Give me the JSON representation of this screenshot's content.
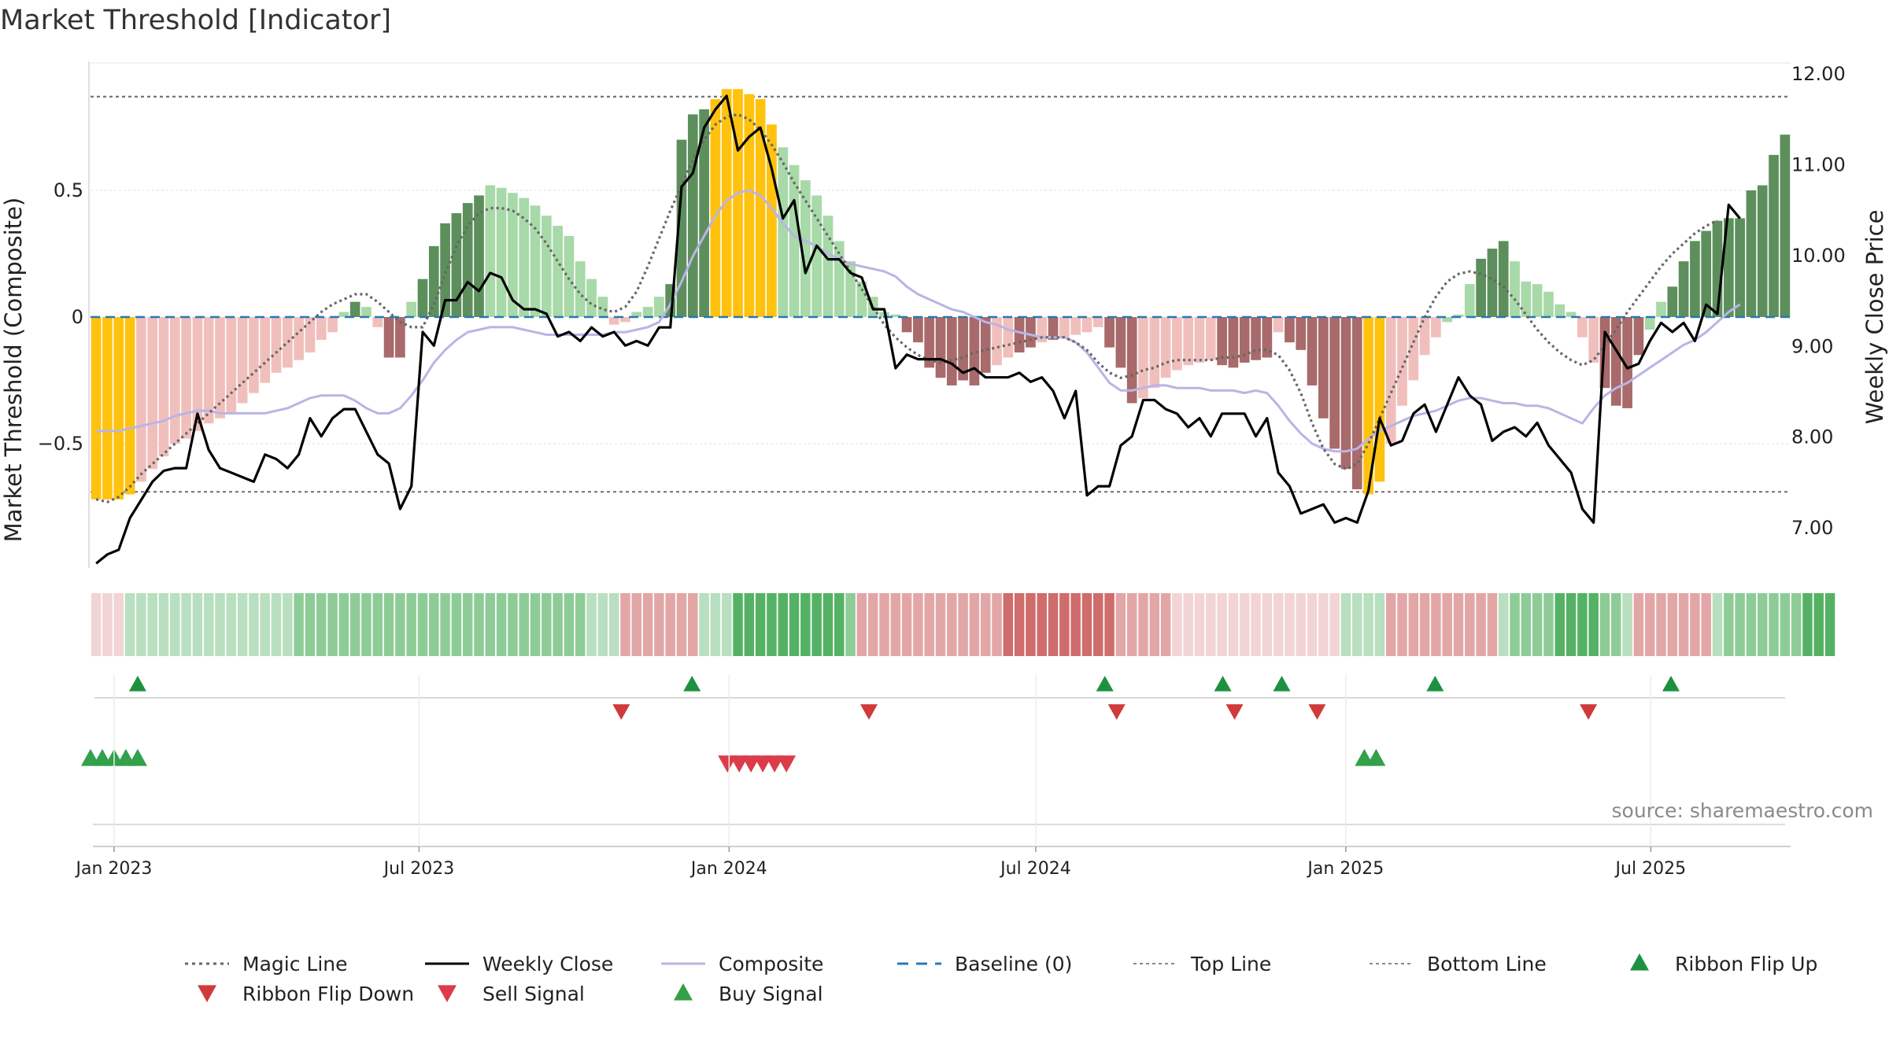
{
  "chart_data": {
    "type": "bar",
    "title": "Market Threshold [Indicator]",
    "ylabel_left": "Market Threshold (Composite)",
    "ylabel_right": "Weekly Close Price",
    "ylim_left": [
      -1.0,
      1.0
    ],
    "ylim_right": [
      6.55,
      12.2
    ],
    "left_ticks": [
      {
        "v": 0.5,
        "label": "0.5"
      },
      {
        "v": 0,
        "label": "0"
      },
      {
        "v": -0.5,
        "label": "−0.5"
      }
    ],
    "right_ticks": [
      {
        "v": 12.0,
        "label": "12.00"
      },
      {
        "v": 11.0,
        "label": "11.00"
      },
      {
        "v": 10.0,
        "label": "10.00"
      },
      {
        "v": 9.0,
        "label": "9.00"
      },
      {
        "v": 8.0,
        "label": "8.00"
      },
      {
        "v": 7.0,
        "label": "7.00"
      }
    ],
    "x_ticks": [
      {
        "date": "2023-01-01",
        "label": "Jan 2023"
      },
      {
        "date": "2023-07-01",
        "label": "Jul 2023"
      },
      {
        "date": "2024-01-01",
        "label": "Jan 2024"
      },
      {
        "date": "2024-07-01",
        "label": "Jul 2024"
      },
      {
        "date": "2025-01-01",
        "label": "Jan 2025"
      },
      {
        "date": "2025-07-01",
        "label": "Jul 2025"
      }
    ],
    "x_start": "2022-12-18",
    "x_end": "2025-09-22",
    "top_line": 0.87,
    "bottom_line": -0.69,
    "composite_bars": [
      -0.72,
      -0.72,
      -0.72,
      -0.7,
      -0.65,
      -0.6,
      -0.55,
      -0.5,
      -0.48,
      -0.45,
      -0.42,
      -0.4,
      -0.38,
      -0.34,
      -0.3,
      -0.26,
      -0.22,
      -0.2,
      -0.17,
      -0.14,
      -0.09,
      -0.06,
      0.02,
      0.06,
      0.04,
      -0.04,
      -0.16,
      -0.16,
      0.06,
      0.15,
      0.28,
      0.37,
      0.41,
      0.45,
      0.48,
      0.52,
      0.51,
      0.49,
      0.47,
      0.44,
      0.4,
      0.36,
      0.32,
      0.22,
      0.15,
      0.08,
      -0.03,
      -0.02,
      0.02,
      0.04,
      0.08,
      0.13,
      0.7,
      0.8,
      0.82,
      0.86,
      0.9,
      0.9,
      0.88,
      0.86,
      0.76,
      0.67,
      0.6,
      0.54,
      0.48,
      0.4,
      0.3,
      0.22,
      0.14,
      0.08,
      0.02,
      0.01,
      -0.06,
      -0.1,
      -0.2,
      -0.24,
      -0.27,
      -0.25,
      -0.27,
      -0.22,
      -0.19,
      -0.16,
      -0.14,
      -0.12,
      -0.1,
      -0.09,
      -0.08,
      -0.07,
      -0.06,
      -0.04,
      -0.12,
      -0.2,
      -0.34,
      -0.32,
      -0.28,
      -0.24,
      -0.21,
      -0.19,
      -0.18,
      -0.17,
      -0.19,
      -0.2,
      -0.18,
      -0.17,
      -0.16,
      -0.06,
      -0.1,
      -0.13,
      -0.27,
      -0.4,
      -0.52,
      -0.6,
      -0.68,
      -0.7,
      -0.65,
      -0.5,
      -0.35,
      -0.25,
      -0.15,
      -0.08,
      -0.02,
      0.01,
      0.13,
      0.23,
      0.27,
      0.3,
      0.22,
      0.14,
      0.13,
      0.1,
      0.05,
      0.02,
      -0.08,
      -0.18,
      -0.28,
      -0.35,
      -0.36,
      -0.15,
      -0.05,
      0.06,
      0.12,
      0.22,
      0.3,
      0.34,
      0.38,
      0.39,
      0.39,
      0.5,
      0.52,
      0.64,
      0.72
    ],
    "bar_classes": [
      "y",
      "y",
      "y",
      "y",
      "p",
      "p",
      "p",
      "p",
      "p",
      "p",
      "p",
      "p",
      "p",
      "p",
      "p",
      "p",
      "p",
      "p",
      "p",
      "p",
      "p",
      "p",
      "l",
      "d",
      "l",
      "p",
      "r",
      "r",
      "l",
      "d",
      "d",
      "d",
      "d",
      "d",
      "d",
      "l",
      "l",
      "l",
      "l",
      "l",
      "l",
      "l",
      "l",
      "l",
      "l",
      "l",
      "p",
      "p",
      "l",
      "l",
      "l",
      "d",
      "d",
      "d",
      "d",
      "y",
      "y",
      "y",
      "y",
      "y",
      "y",
      "l",
      "l",
      "l",
      "l",
      "l",
      "l",
      "l",
      "l",
      "l",
      "l",
      "l",
      "r",
      "r",
      "r",
      "r",
      "r",
      "r",
      "r",
      "r",
      "p",
      "p",
      "r",
      "r",
      "p",
      "r",
      "p",
      "p",
      "p",
      "p",
      "r",
      "r",
      "r",
      "p",
      "p",
      "p",
      "p",
      "p",
      "p",
      "p",
      "r",
      "r",
      "r",
      "r",
      "r",
      "p",
      "r",
      "r",
      "r",
      "r",
      "r",
      "r",
      "r",
      "y",
      "y",
      "p",
      "p",
      "p",
      "p",
      "p",
      "l",
      "l",
      "l",
      "d",
      "d",
      "d",
      "l",
      "l",
      "l",
      "l",
      "l",
      "l",
      "p",
      "p",
      "r",
      "r",
      "r",
      "r",
      "l",
      "l",
      "d",
      "d",
      "d",
      "d",
      "d",
      "d",
      "d",
      "d",
      "d",
      "d",
      "d"
    ],
    "weekly_close": [
      6.6,
      6.7,
      6.75,
      7.1,
      7.3,
      7.5,
      7.62,
      7.65,
      7.65,
      8.25,
      7.85,
      7.65,
      7.6,
      7.55,
      7.5,
      7.8,
      7.75,
      7.65,
      7.8,
      8.2,
      8.0,
      8.2,
      8.3,
      8.3,
      8.05,
      7.8,
      7.7,
      7.2,
      7.45,
      9.15,
      9.0,
      9.5,
      9.5,
      9.7,
      9.6,
      9.8,
      9.75,
      9.5,
      9.4,
      9.4,
      9.35,
      9.1,
      9.15,
      9.05,
      9.2,
      9.1,
      9.15,
      9.0,
      9.05,
      9.0,
      9.2,
      9.2,
      10.75,
      10.9,
      11.4,
      11.6,
      11.75,
      11.15,
      11.3,
      11.4,
      10.95,
      10.4,
      10.6,
      9.8,
      10.1,
      9.95,
      9.95,
      9.8,
      9.75,
      9.4,
      9.4,
      8.75,
      8.9,
      8.85,
      8.85,
      8.85,
      8.8,
      8.7,
      8.75,
      8.65,
      8.65,
      8.65,
      8.7,
      8.6,
      8.65,
      8.5,
      8.2,
      8.5,
      7.35,
      7.45,
      7.45,
      7.9,
      8.0,
      8.4,
      8.4,
      8.3,
      8.25,
      8.1,
      8.2,
      8.0,
      8.25,
      8.25,
      8.25,
      8.0,
      8.2,
      7.6,
      7.45,
      7.15,
      7.2,
      7.25,
      7.05,
      7.1,
      7.05,
      7.4,
      8.2,
      7.9,
      7.95,
      8.25,
      8.35,
      8.05,
      8.35,
      8.65,
      8.45,
      8.35,
      7.95,
      8.05,
      8.1,
      8.0,
      8.15,
      7.9,
      7.75,
      7.6,
      7.2,
      7.05,
      9.15,
      8.95,
      8.75,
      8.8,
      9.05,
      9.25,
      9.15,
      9.25,
      9.05,
      9.45,
      9.35,
      10.55,
      10.4
    ],
    "magic_line": [
      -0.72,
      -0.73,
      -0.71,
      -0.67,
      -0.62,
      -0.58,
      -0.54,
      -0.5,
      -0.46,
      -0.42,
      -0.38,
      -0.34,
      -0.3,
      -0.26,
      -0.22,
      -0.18,
      -0.14,
      -0.1,
      -0.06,
      -0.02,
      0.02,
      0.05,
      0.07,
      0.09,
      0.09,
      0.06,
      0.02,
      -0.02,
      -0.04,
      -0.04,
      0.05,
      0.17,
      0.28,
      0.36,
      0.41,
      0.43,
      0.43,
      0.42,
      0.39,
      0.35,
      0.29,
      0.22,
      0.15,
      0.09,
      0.05,
      0.03,
      0.02,
      0.04,
      0.1,
      0.2,
      0.31,
      0.42,
      0.52,
      0.62,
      0.7,
      0.76,
      0.79,
      0.8,
      0.78,
      0.74,
      0.68,
      0.61,
      0.53,
      0.46,
      0.39,
      0.32,
      0.25,
      0.18,
      0.11,
      0.04,
      -0.03,
      -0.08,
      -0.12,
      -0.15,
      -0.17,
      -0.18,
      -0.17,
      -0.16,
      -0.14,
      -0.13,
      -0.12,
      -0.11,
      -0.1,
      -0.09,
      -0.08,
      -0.08,
      -0.08,
      -0.1,
      -0.13,
      -0.18,
      -0.22,
      -0.24,
      -0.23,
      -0.21,
      -0.2,
      -0.18,
      -0.17,
      -0.17,
      -0.17,
      -0.17,
      -0.16,
      -0.16,
      -0.15,
      -0.13,
      -0.13,
      -0.15,
      -0.21,
      -0.3,
      -0.42,
      -0.52,
      -0.58,
      -0.6,
      -0.58,
      -0.5,
      -0.4,
      -0.3,
      -0.2,
      -0.1,
      0.0,
      0.08,
      0.14,
      0.17,
      0.18,
      0.17,
      0.15,
      0.12,
      0.07,
      0.01,
      -0.05,
      -0.1,
      -0.14,
      -0.17,
      -0.19,
      -0.17,
      -0.11,
      -0.05,
      0.02,
      0.08,
      0.14,
      0.2,
      0.25,
      0.29,
      0.33,
      0.36,
      0.38
    ],
    "composite_line": [
      -0.45,
      -0.45,
      -0.45,
      -0.44,
      -0.43,
      -0.42,
      -0.41,
      -0.39,
      -0.38,
      -0.37,
      -0.37,
      -0.38,
      -0.38,
      -0.38,
      -0.38,
      -0.38,
      -0.37,
      -0.36,
      -0.34,
      -0.32,
      -0.31,
      -0.31,
      -0.31,
      -0.33,
      -0.36,
      -0.38,
      -0.38,
      -0.36,
      -0.31,
      -0.25,
      -0.18,
      -0.13,
      -0.09,
      -0.06,
      -0.05,
      -0.04,
      -0.04,
      -0.04,
      -0.05,
      -0.06,
      -0.07,
      -0.07,
      -0.07,
      -0.07,
      -0.07,
      -0.07,
      -0.06,
      -0.06,
      -0.05,
      -0.04,
      -0.02,
      0.05,
      0.14,
      0.24,
      0.32,
      0.4,
      0.46,
      0.49,
      0.5,
      0.48,
      0.43,
      0.37,
      0.32,
      0.3,
      0.28,
      0.25,
      0.23,
      0.21,
      0.2,
      0.19,
      0.18,
      0.16,
      0.12,
      0.09,
      0.07,
      0.05,
      0.03,
      0.02,
      0.0,
      -0.02,
      -0.03,
      -0.05,
      -0.06,
      -0.07,
      -0.08,
      -0.08,
      -0.08,
      -0.1,
      -0.14,
      -0.2,
      -0.26,
      -0.29,
      -0.29,
      -0.28,
      -0.27,
      -0.27,
      -0.28,
      -0.28,
      -0.28,
      -0.29,
      -0.29,
      -0.29,
      -0.3,
      -0.29,
      -0.3,
      -0.35,
      -0.41,
      -0.46,
      -0.5,
      -0.52,
      -0.53,
      -0.53,
      -0.52,
      -0.48,
      -0.45,
      -0.43,
      -0.41,
      -0.39,
      -0.38,
      -0.37,
      -0.35,
      -0.33,
      -0.32,
      -0.32,
      -0.33,
      -0.34,
      -0.34,
      -0.35,
      -0.35,
      -0.36,
      -0.38,
      -0.4,
      -0.42,
      -0.36,
      -0.31,
      -0.28,
      -0.26,
      -0.23,
      -0.2,
      -0.17,
      -0.14,
      -0.11,
      -0.09,
      -0.06,
      -0.02,
      0.02,
      0.05
    ],
    "ribbon": [
      "p1",
      "p1",
      "p1",
      "g1",
      "g1",
      "g1",
      "g1",
      "g1",
      "g1",
      "g1",
      "g1",
      "g1",
      "g1",
      "g1",
      "g1",
      "g1",
      "g1",
      "g1",
      "g2",
      "g2",
      "g2",
      "g2",
      "g2",
      "g2",
      "g2",
      "g2",
      "g2",
      "g2",
      "g2",
      "g2",
      "g2",
      "g2",
      "g2",
      "g2",
      "g2",
      "g2",
      "g2",
      "g2",
      "g2",
      "g2",
      "g2",
      "g2",
      "g2",
      "g2",
      "g1",
      "g1",
      "g1",
      "p2",
      "p2",
      "p2",
      "p2",
      "p2",
      "p2",
      "p2",
      "g1",
      "g1",
      "g1",
      "g3",
      "g3",
      "g3",
      "g3",
      "g3",
      "g3",
      "g3",
      "g3",
      "g3",
      "g3",
      "g2",
      "p2",
      "p2",
      "p2",
      "p2",
      "p2",
      "p2",
      "p2",
      "p2",
      "p2",
      "p2",
      "p2",
      "p2",
      "p2",
      "r3",
      "r3",
      "r3",
      "r3",
      "r3",
      "r3",
      "r3",
      "r3",
      "r3",
      "r3",
      "p2",
      "p2",
      "p2",
      "p2",
      "p2",
      "p1",
      "p1",
      "p1",
      "p1",
      "p1",
      "p1",
      "p1",
      "p1",
      "p1",
      "p1",
      "p1",
      "p1",
      "p1",
      "p1",
      "p1",
      "g1",
      "g1",
      "g1",
      "g1",
      "p2",
      "p2",
      "p2",
      "p2",
      "p2",
      "p2",
      "p2",
      "p2",
      "p2",
      "p2",
      "g1",
      "g2",
      "g2",
      "g2",
      "g2",
      "g3",
      "g3",
      "g3",
      "g3",
      "g2",
      "g2",
      "g1",
      "p2",
      "p2",
      "p2",
      "p2",
      "p2",
      "p2",
      "p2",
      "g1",
      "g2",
      "g2",
      "g2",
      "g2",
      "g2",
      "g2",
      "g2",
      "g3",
      "g3",
      "g3"
    ],
    "ribbon_flip_up": [
      "2023-01-15",
      "2023-12-10",
      "2024-08-11",
      "2024-10-20",
      "2024-11-24",
      "2025-02-23",
      "2025-07-13"
    ],
    "ribbon_flip_down": [
      "2023-10-29",
      "2024-03-24",
      "2024-08-18",
      "2024-10-27",
      "2024-12-15",
      "2025-05-25"
    ],
    "buy_signals": [
      "2022-12-18",
      "2022-12-25",
      "2023-01-01",
      "2023-01-08",
      "2023-01-15",
      "2025-01-12",
      "2025-01-19"
    ],
    "sell_signals": [
      "2023-12-31",
      "2024-01-07",
      "2024-01-14",
      "2024-01-21",
      "2024-01-28",
      "2024-02-04"
    ],
    "legend": [
      {
        "label": "Magic Line",
        "kind": "dotted",
        "color": "#666666"
      },
      {
        "label": "Weekly Close",
        "kind": "solid",
        "color": "#000000"
      },
      {
        "label": "Composite",
        "kind": "solid",
        "color": "#b9b4e6"
      },
      {
        "label": "Baseline (0)",
        "kind": "dashed",
        "color": "#2878b5"
      },
      {
        "label": "Top Line",
        "kind": "thin-dotted",
        "color": "#888888"
      },
      {
        "label": "Bottom Line",
        "kind": "thin-dotted",
        "color": "#888888"
      },
      {
        "label": "Ribbon Flip Up",
        "kind": "tri-up",
        "color": "#1e9140"
      },
      {
        "label": "Ribbon Flip Down",
        "kind": "tri-down",
        "color": "#d03a3a"
      },
      {
        "label": "Sell Signal",
        "kind": "tri-down",
        "color": "#dc3b49"
      },
      {
        "label": "Buy Signal",
        "kind": "tri-up",
        "color": "#33a04a"
      }
    ],
    "source": "source: sharemaestro.com",
    "colors": {
      "bar_yellow": "#ffc20e",
      "bar_dark_green": "#5d8f5d",
      "bar_light_green": "#a8d9a8",
      "bar_dark_red": "#a86a6a",
      "bar_light_red": "#f0bfbc",
      "ribbon_g1": "#b8dfbf",
      "ribbon_g2": "#8ecc97",
      "ribbon_g3": "#55b265",
      "ribbon_p1": "#f2d4d4",
      "ribbon_p2": "#e3a6a6",
      "ribbon_r3": "#cf6c6c"
    }
  }
}
